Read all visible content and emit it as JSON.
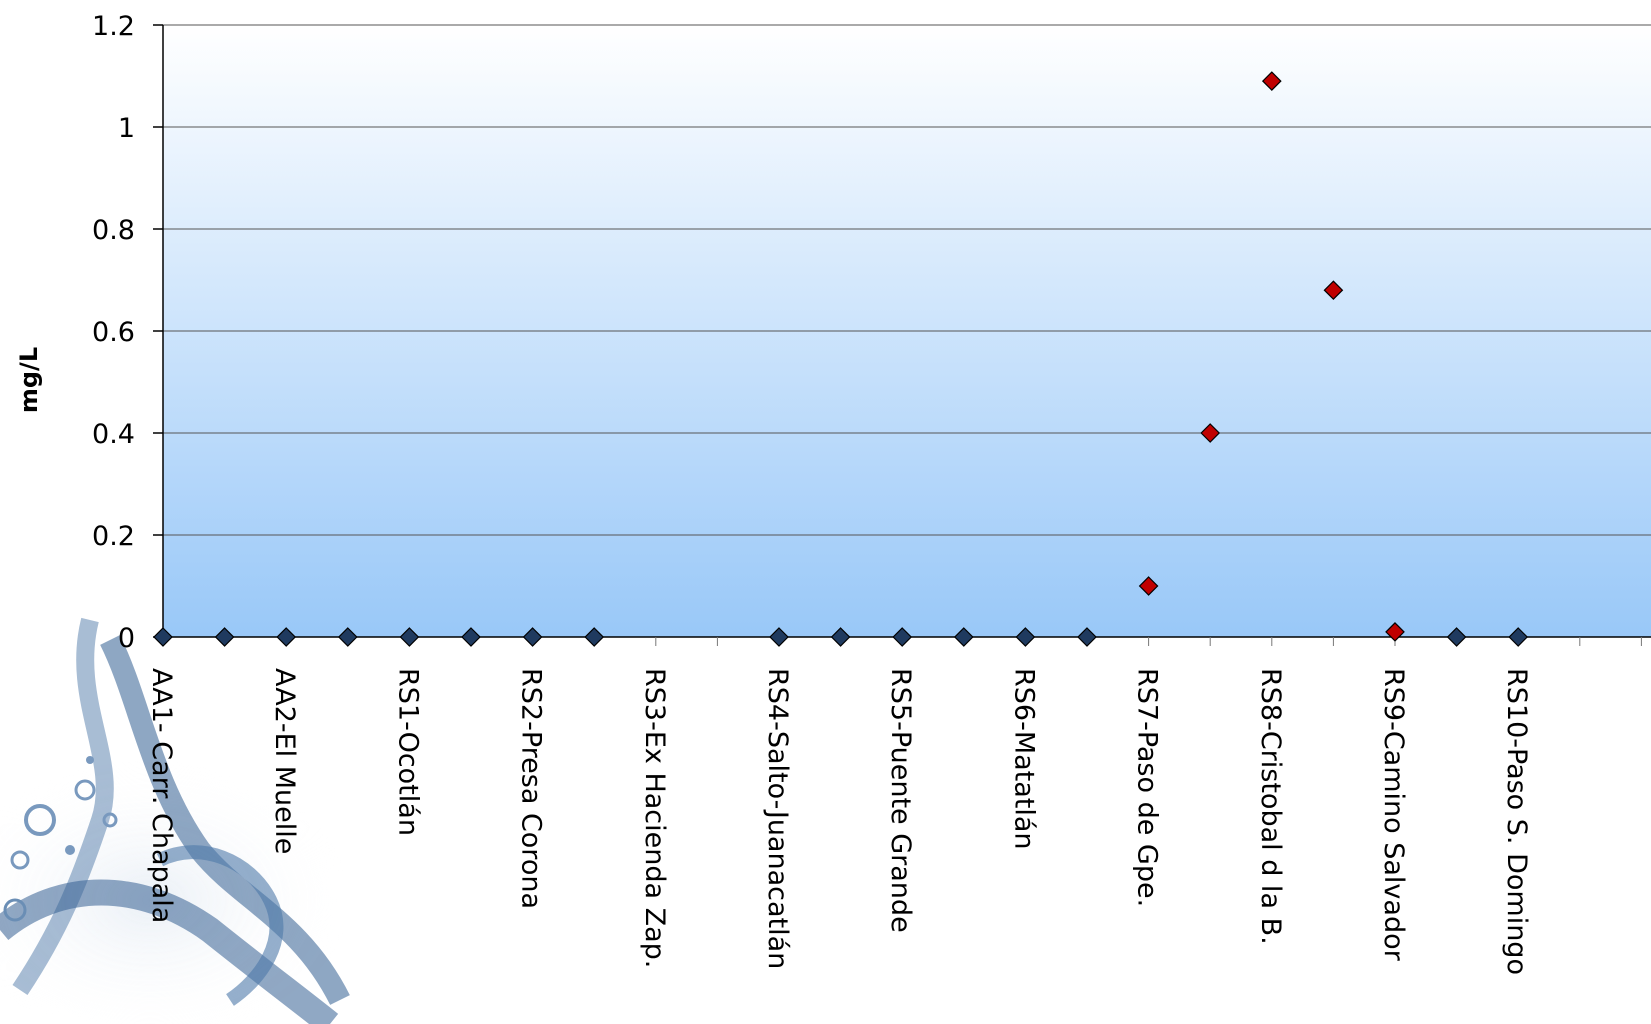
{
  "chart_data": {
    "type": "scatter",
    "title": "",
    "xlabel": "",
    "ylabel": "mg/L",
    "ylim": [
      0,
      1.2
    ],
    "yticks": [
      "0",
      "0.2",
      "0.4",
      "0.6",
      "0.8",
      "1",
      "1.2"
    ],
    "categories": [
      "AA1- Carr. Chapala",
      "AA2-El Muelle",
      "RS1-Ocotlán",
      "RS2-Presa Corona",
      "RS3-Ex Hacienda Zap.",
      "RS4-Salto-Juanacatlán",
      "RS5-Puente Grande",
      "RS6-Matatlán",
      "RS7-Paso de Gpe.",
      "RS8-Cristobal d la B.",
      "RS9-Camino Salvador",
      "RS10-Paso S. Domingo"
    ],
    "grid": true,
    "colors": {
      "series_blue": "#1f3a5f",
      "series_red": "#c00000",
      "plot_top": "#ffffff",
      "plot_bottom": "#99c8f8"
    },
    "series": [
      {
        "color": "series_blue",
        "points": [
          {
            "x": 0,
            "y": 0
          },
          {
            "x": 0.5,
            "y": 0
          },
          {
            "x": 1,
            "y": 0
          },
          {
            "x": 1.5,
            "y": 0
          },
          {
            "x": 2,
            "y": 0
          },
          {
            "x": 2.5,
            "y": 0
          },
          {
            "x": 3,
            "y": 0
          },
          {
            "x": 3.5,
            "y": 0
          },
          {
            "x": 5,
            "y": 0
          },
          {
            "x": 5.5,
            "y": 0
          },
          {
            "x": 6,
            "y": 0
          },
          {
            "x": 6.5,
            "y": 0
          },
          {
            "x": 7,
            "y": 0
          },
          {
            "x": 7.5,
            "y": 0
          },
          {
            "x": 10.5,
            "y": 0
          },
          {
            "x": 11,
            "y": 0
          }
        ]
      },
      {
        "color": "series_red",
        "points": [
          {
            "x": 8,
            "y": 0.1
          },
          {
            "x": 8.5,
            "y": 0.4
          },
          {
            "x": 9,
            "y": 1.09
          },
          {
            "x": 9.5,
            "y": 0.68
          },
          {
            "x": 10,
            "y": 0.01
          }
        ]
      }
    ]
  }
}
